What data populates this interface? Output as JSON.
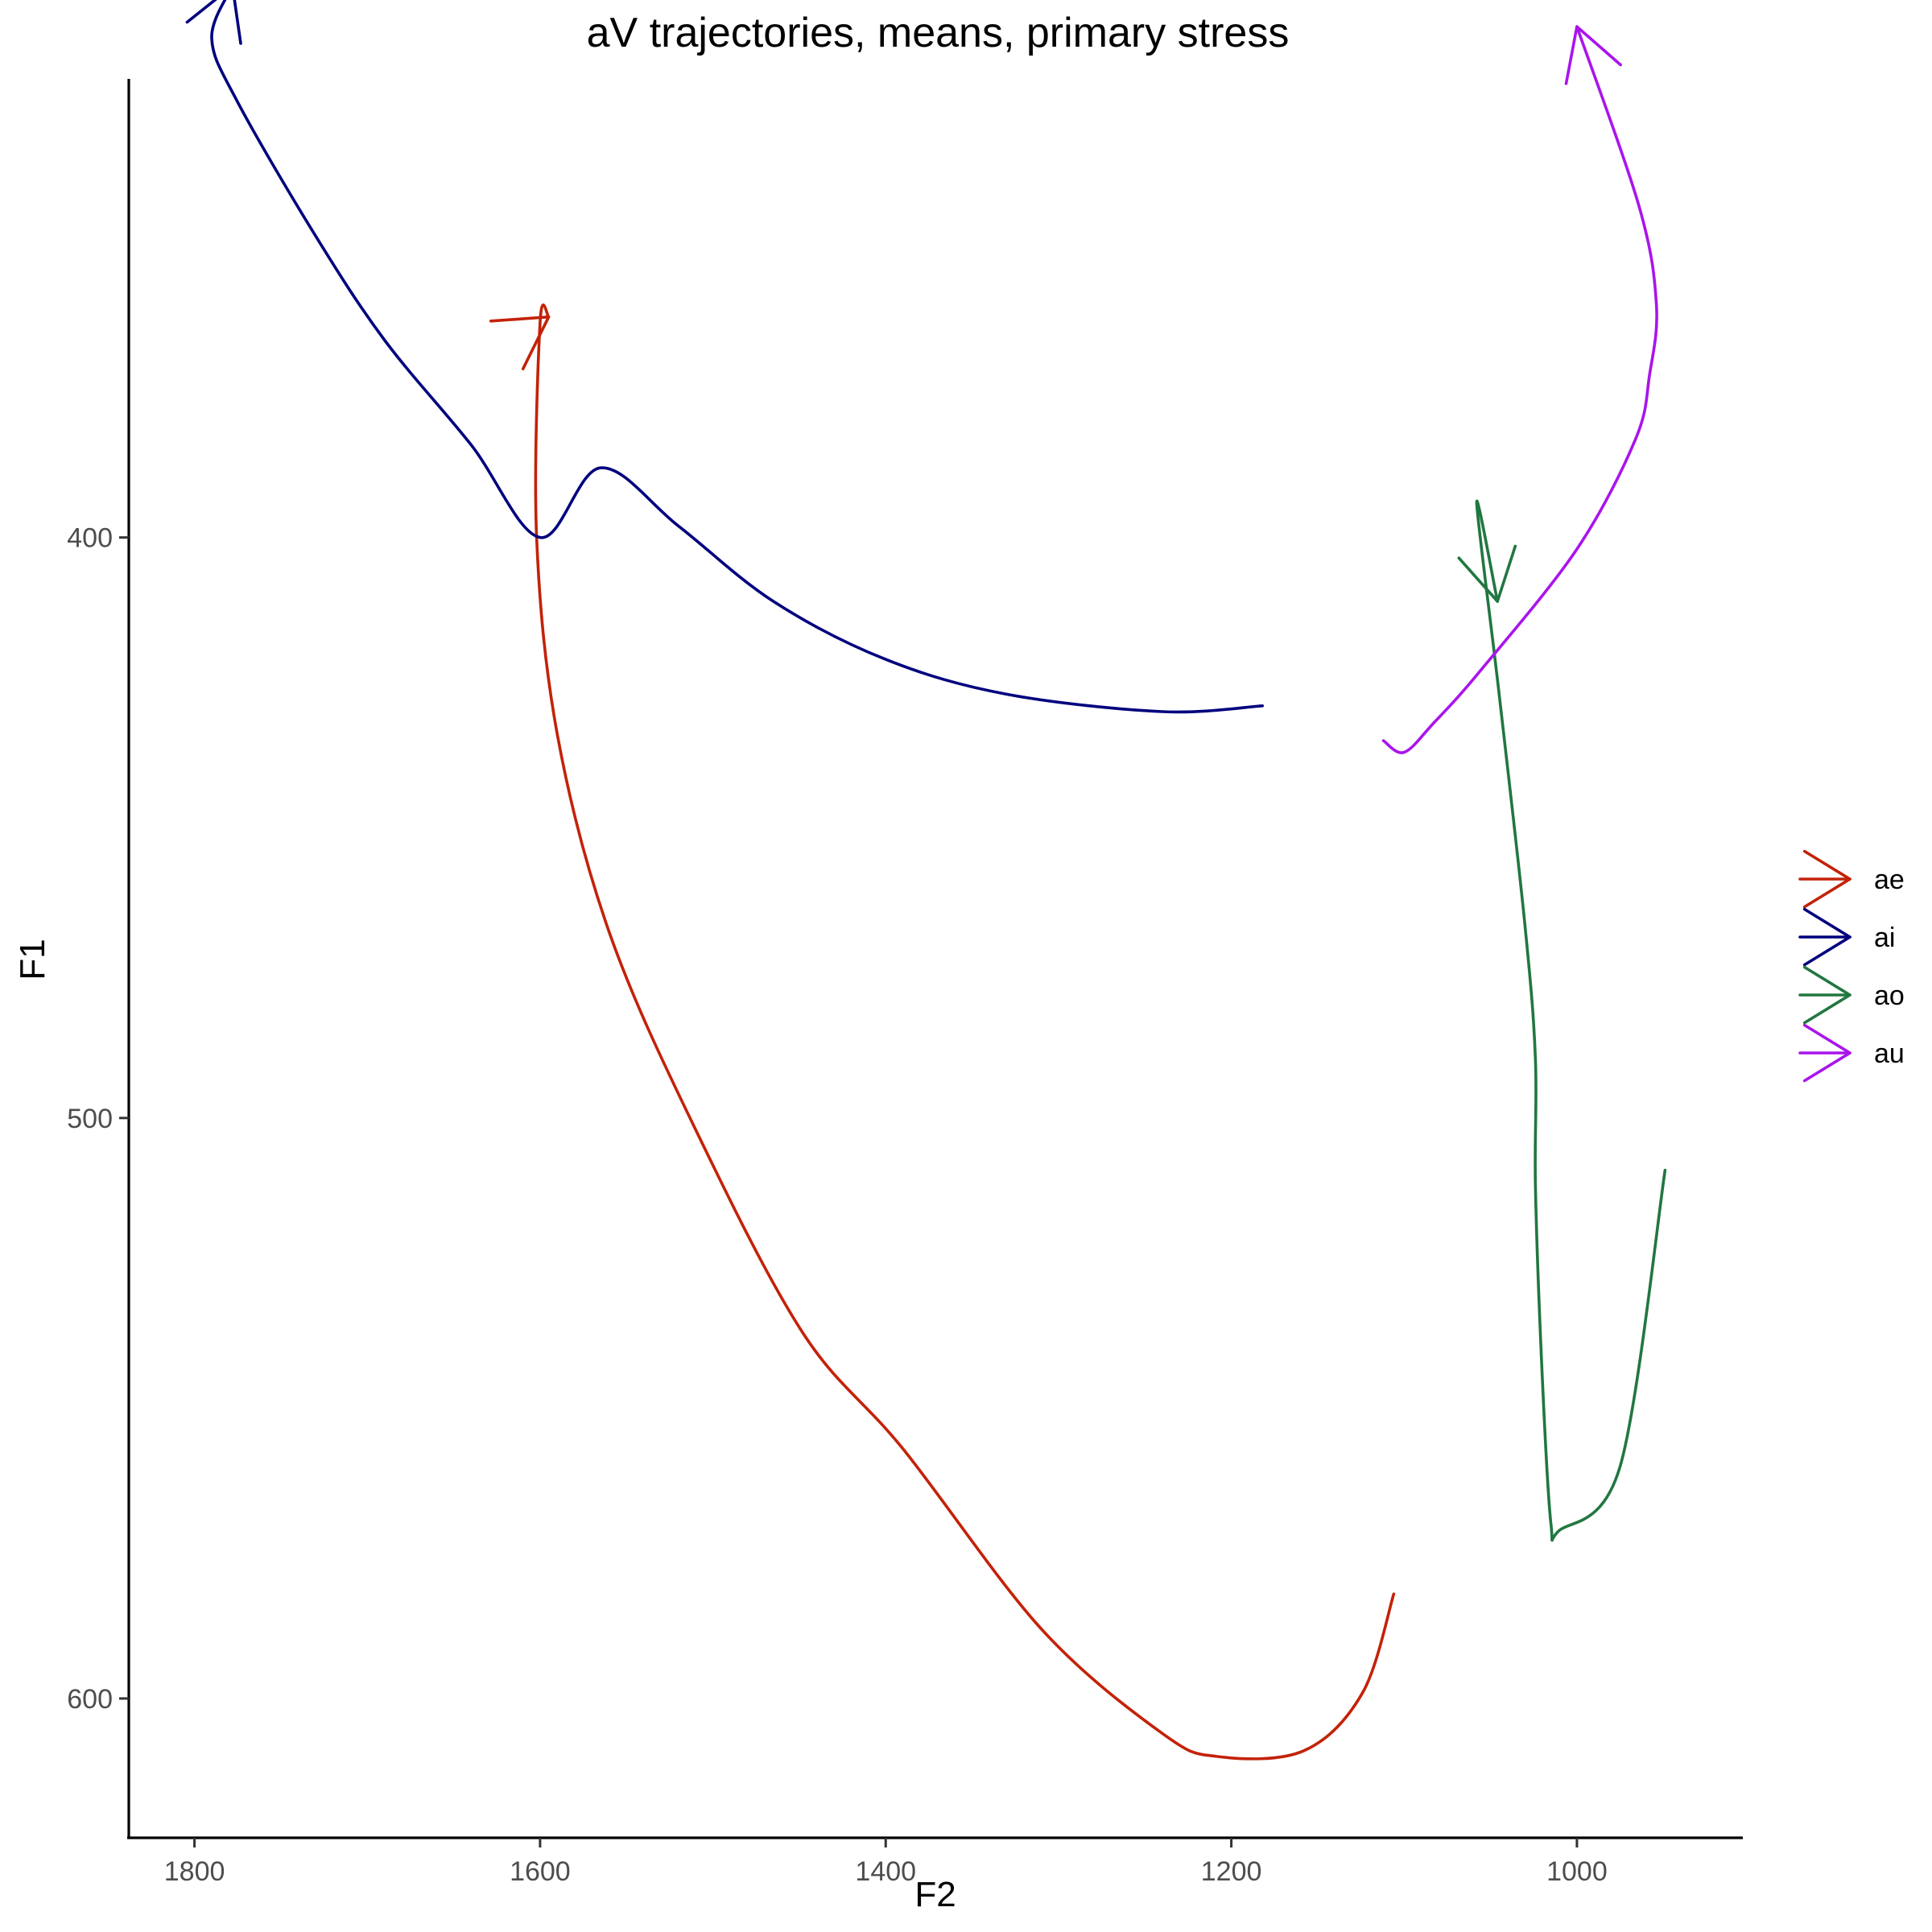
{
  "chart_data": {
    "type": "line",
    "title": "aV trajectories, means, primary stress",
    "xlabel": "F2",
    "ylabel": "F1",
    "x_reversed": true,
    "y_reversed": true,
    "xlim": [
      1838,
      904
    ],
    "ylim": [
      321,
      624
    ],
    "x_ticks": [
      1800,
      1600,
      1400,
      1200,
      1000
    ],
    "y_ticks": [
      400,
      500,
      600
    ],
    "grid": false,
    "legend_position": "right",
    "series": [
      {
        "name": "ae",
        "color": "#c32208",
        "points": [
          [
            1106,
            582
          ],
          [
            1124,
            599
          ],
          [
            1158,
            609
          ],
          [
            1208,
            610
          ],
          [
            1240,
            606
          ],
          [
            1310,
            588
          ],
          [
            1390,
            557
          ],
          [
            1448,
            537
          ],
          [
            1510,
            502
          ],
          [
            1560,
            468
          ],
          [
            1590,
            434
          ],
          [
            1602,
            400
          ],
          [
            1600,
            363
          ],
          [
            1595,
            362
          ]
        ]
      },
      {
        "name": "ai",
        "color": "#00007e",
        "points": [
          [
            1182,
            429
          ],
          [
            1240,
            430
          ],
          [
            1330,
            427
          ],
          [
            1400,
            421
          ],
          [
            1465,
            411
          ],
          [
            1520,
            398
          ],
          [
            1565,
            388
          ],
          [
            1600,
            400
          ],
          [
            1640,
            384
          ],
          [
            1690,
            366
          ],
          [
            1730,
            348
          ],
          [
            1775,
            325
          ],
          [
            1790,
            314
          ],
          [
            1778,
            305
          ]
        ]
      },
      {
        "name": "ao",
        "color": "#217740",
        "points": [
          [
            949,
            509
          ],
          [
            975,
            560
          ],
          [
            1010,
            571
          ],
          [
            1015,
            570
          ],
          [
            1020,
            545
          ],
          [
            1024,
            512
          ],
          [
            1024,
            490
          ],
          [
            1030,
            467
          ],
          [
            1045,
            427
          ],
          [
            1058,
            394
          ],
          [
            1046,
            411
          ]
        ]
      },
      {
        "name": "au",
        "color": "#aa14ec",
        "points": [
          [
            1112,
            435
          ],
          [
            1100,
            437
          ],
          [
            1083,
            432
          ],
          [
            1056,
            423
          ],
          [
            1000,
            402
          ],
          [
            966,
            383
          ],
          [
            958,
            372
          ],
          [
            954,
            360
          ],
          [
            964,
            343
          ],
          [
            1000,
            312
          ]
        ]
      }
    ]
  }
}
